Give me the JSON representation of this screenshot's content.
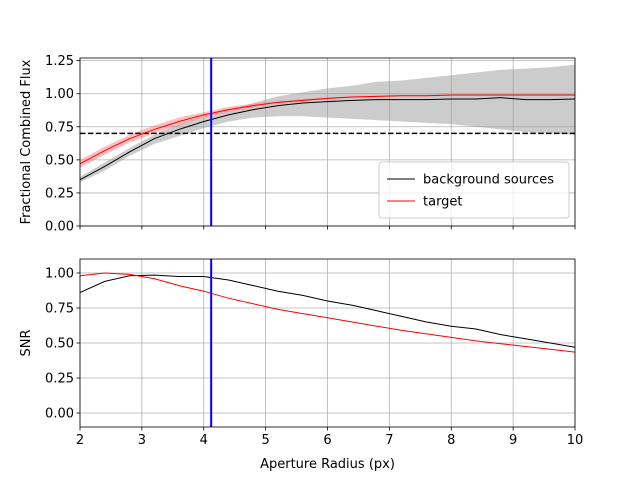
{
  "chart_data": [
    {
      "type": "line",
      "ylabel": "Fractional Combined Flux",
      "x": [
        2,
        2.4,
        2.8,
        3.2,
        3.6,
        4.0,
        4.4,
        4.8,
        5.2,
        5.6,
        6.0,
        6.4,
        6.8,
        7.2,
        7.6,
        8.0,
        8.4,
        8.8,
        9.2,
        9.6,
        10.0
      ],
      "xlim": [
        2,
        10
      ],
      "xticks": [
        2,
        3,
        4,
        5,
        6,
        7,
        8,
        9,
        10
      ],
      "ylim": [
        0,
        1.27
      ],
      "yticks": [
        {
          "value": 0,
          "label": "0.00"
        },
        0.25,
        {
          "value": 0.5,
          "label": "0.50"
        },
        0.75,
        {
          "value": 1,
          "label": "1.00"
        },
        1.25
      ],
      "grid": true,
      "legend": "lower right",
      "hline": 0.7,
      "vline": 4.12,
      "vline_color": "#0000ff",
      "series": [
        {
          "name": "background sources",
          "color": "#000000",
          "band_color": "#999999",
          "values": [
            0.35,
            0.45,
            0.56,
            0.66,
            0.73,
            0.79,
            0.84,
            0.88,
            0.91,
            0.93,
            0.94,
            0.95,
            0.955,
            0.955,
            0.955,
            0.96,
            0.96,
            0.97,
            0.955,
            0.955,
            0.96
          ],
          "upper": [
            0.37,
            0.48,
            0.59,
            0.69,
            0.77,
            0.83,
            0.88,
            0.93,
            0.98,
            1.01,
            1.04,
            1.06,
            1.09,
            1.1,
            1.12,
            1.14,
            1.16,
            1.18,
            1.19,
            1.2,
            1.22
          ],
          "lower": [
            0.33,
            0.42,
            0.53,
            0.62,
            0.68,
            0.74,
            0.79,
            0.82,
            0.83,
            0.83,
            0.82,
            0.81,
            0.8,
            0.79,
            0.78,
            0.77,
            0.75,
            0.73,
            0.71,
            0.7,
            0.69
          ]
        },
        {
          "name": "target",
          "color": "#ff0000",
          "band_color": "#ff8080",
          "values": [
            0.47,
            0.57,
            0.66,
            0.73,
            0.79,
            0.84,
            0.88,
            0.91,
            0.935,
            0.95,
            0.965,
            0.975,
            0.98,
            0.985,
            0.985,
            0.99,
            0.99,
            0.99,
            0.99,
            0.99,
            0.99
          ],
          "upper": [
            0.5,
            0.6,
            0.69,
            0.76,
            0.82,
            0.86,
            0.9,
            0.925,
            0.945,
            0.96,
            0.972,
            0.98,
            0.985,
            0.99,
            0.99,
            0.995,
            0.995,
            0.995,
            0.995,
            0.995,
            0.995
          ],
          "lower": [
            0.44,
            0.54,
            0.63,
            0.7,
            0.76,
            0.82,
            0.86,
            0.895,
            0.925,
            0.94,
            0.958,
            0.97,
            0.975,
            0.98,
            0.98,
            0.985,
            0.985,
            0.985,
            0.985,
            0.985,
            0.985
          ]
        }
      ]
    },
    {
      "type": "line",
      "ylabel": "SNR",
      "xlabel": "Aperture Radius (px)",
      "x": [
        2,
        2.4,
        2.8,
        3.2,
        3.6,
        4.0,
        4.4,
        4.8,
        5.2,
        5.6,
        6.0,
        6.4,
        6.8,
        7.2,
        7.6,
        8.0,
        8.4,
        8.8,
        9.2,
        9.6,
        10.0
      ],
      "xlim": [
        2,
        10
      ],
      "xticks": [
        2,
        3,
        4,
        5,
        6,
        7,
        8,
        9,
        10
      ],
      "ylim": [
        -0.1,
        1.1
      ],
      "yticks": [
        {
          "value": 0,
          "label": "0.00"
        },
        0.25,
        {
          "value": 0.5,
          "label": "0.50"
        },
        0.75,
        {
          "value": 1,
          "label": "1.00"
        }
      ],
      "grid": true,
      "vline": 4.12,
      "vline_color": "#0000ff",
      "series": [
        {
          "color": "#000000",
          "values": [
            0.86,
            0.94,
            0.98,
            0.985,
            0.975,
            0.975,
            0.95,
            0.91,
            0.87,
            0.84,
            0.8,
            0.77,
            0.73,
            0.69,
            0.65,
            0.62,
            0.6,
            0.56,
            0.53,
            0.5,
            0.47
          ]
        },
        {
          "color": "#ff0000",
          "values": [
            0.98,
            1.0,
            0.99,
            0.96,
            0.91,
            0.87,
            0.82,
            0.78,
            0.74,
            0.71,
            0.68,
            0.65,
            0.62,
            0.59,
            0.565,
            0.54,
            0.515,
            0.495,
            0.475,
            0.455,
            0.435
          ]
        }
      ]
    }
  ]
}
